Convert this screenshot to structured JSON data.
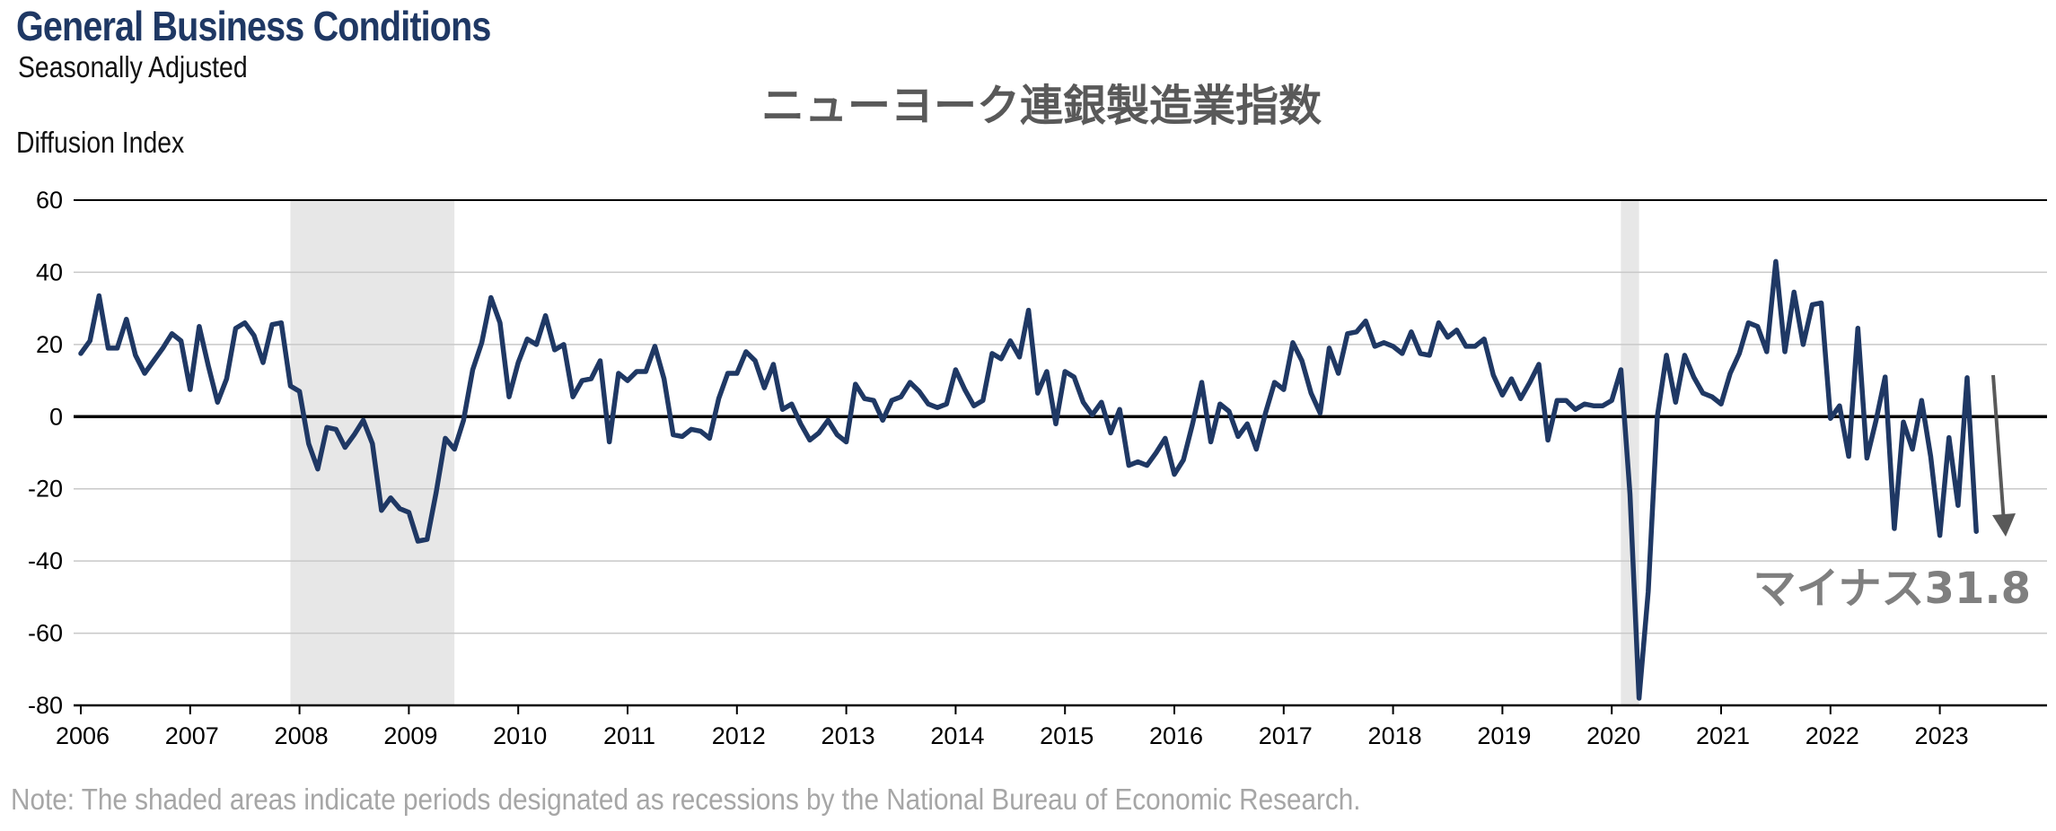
{
  "chart_data": {
    "type": "line",
    "title": "General Business Conditions",
    "subtitle": "Seasonally Adjusted",
    "jp_title": "ニューヨーク連銀製造業指数",
    "ylabel": "Diffusion Index",
    "xlabel": "",
    "ylim": [
      -80,
      60
    ],
    "y_ticks": [
      "60",
      "40",
      "20",
      "0",
      "-20",
      "-40",
      "-60",
      "-80"
    ],
    "x_ticks": [
      "2006",
      "2007",
      "2008",
      "2009",
      "2010",
      "2011",
      "2012",
      "2013",
      "2014",
      "2015",
      "2016",
      "2017",
      "2018",
      "2019",
      "2020",
      "2021",
      "2022",
      "2023"
    ],
    "grid": true,
    "recessions": [
      {
        "start": "2007-12",
        "end": "2009-06"
      },
      {
        "start": "2020-02",
        "end": "2020-04"
      }
    ],
    "annotation": "マイナス31.8",
    "note": "Note: The shaded areas indicate periods designated as recessions by the National Bureau of Economic Research.",
    "colors": {
      "line": "#1f3864",
      "recession": "#e7e7e7",
      "grid": "#c8c8c8",
      "arrow": "#595959"
    },
    "series": [
      {
        "start": "2006-01",
        "values": [
          17.5,
          21,
          33.5,
          19,
          19,
          27,
          17,
          12,
          15.5,
          19,
          23,
          21,
          7.5,
          25,
          14,
          4,
          10.5,
          24.5,
          26,
          22.5,
          15,
          25.5,
          26,
          8.5,
          7,
          -7.5,
          -14.5,
          -3,
          -3.5,
          -8.5,
          -5,
          -1,
          -7.5,
          -26,
          -22.5,
          -25.5,
          -26.5,
          -34.5,
          -34,
          -21,
          -6,
          -9,
          -1,
          13,
          20.5,
          33,
          26,
          5.5,
          15,
          21.5,
          20,
          28,
          18.5,
          20,
          5.5,
          10,
          10.5,
          15.5,
          -7,
          12,
          10,
          12.5,
          12.5,
          19.5,
          10.5,
          -5,
          -5.5,
          -3.5,
          -4,
          -6,
          5,
          12,
          12,
          18,
          15.5,
          8,
          14.5,
          2,
          3.5,
          -2,
          -6.5,
          -4.5,
          -1,
          -5,
          -7,
          9,
          5,
          4.5,
          -1,
          4.5,
          5.5,
          9.5,
          7,
          3.5,
          2.5,
          3.5,
          13,
          7.5,
          3,
          4.5,
          17.5,
          16,
          21,
          16.5,
          29.5,
          6.5,
          12.5,
          -2,
          12.5,
          11,
          4,
          0.5,
          4,
          -4.5,
          2,
          -13.5,
          -12.5,
          -13.5,
          -10,
          -6,
          -16,
          -12,
          -2,
          9.5,
          -7,
          3.5,
          1.5,
          -5.5,
          -2,
          -9,
          1,
          9.5,
          7.5,
          20.5,
          15.5,
          6.5,
          1,
          19,
          12,
          23,
          23.5,
          26.5,
          19.5,
          20.5,
          19.5,
          17.5,
          23.5,
          17.5,
          17,
          26,
          22,
          24,
          19.5,
          19.5,
          21.5,
          11.5,
          6,
          10.5,
          5,
          9.5,
          14.5,
          -6.5,
          4.5,
          4.5,
          2,
          3.5,
          3,
          3,
          4.5,
          13,
          -21.5,
          -78,
          -48.5,
          0,
          17,
          4,
          17,
          11,
          6.5,
          5.5,
          3.5,
          12,
          17.5,
          26,
          25,
          18,
          43,
          18,
          34.5,
          20,
          31,
          31.5,
          -0.5,
          3,
          -11,
          24.5,
          -11.5,
          -1,
          11,
          -31,
          -1.5,
          -9,
          4.5,
          -11,
          -32.9,
          -5.8,
          -24.6,
          10.8,
          -31.8
        ]
      }
    ]
  }
}
